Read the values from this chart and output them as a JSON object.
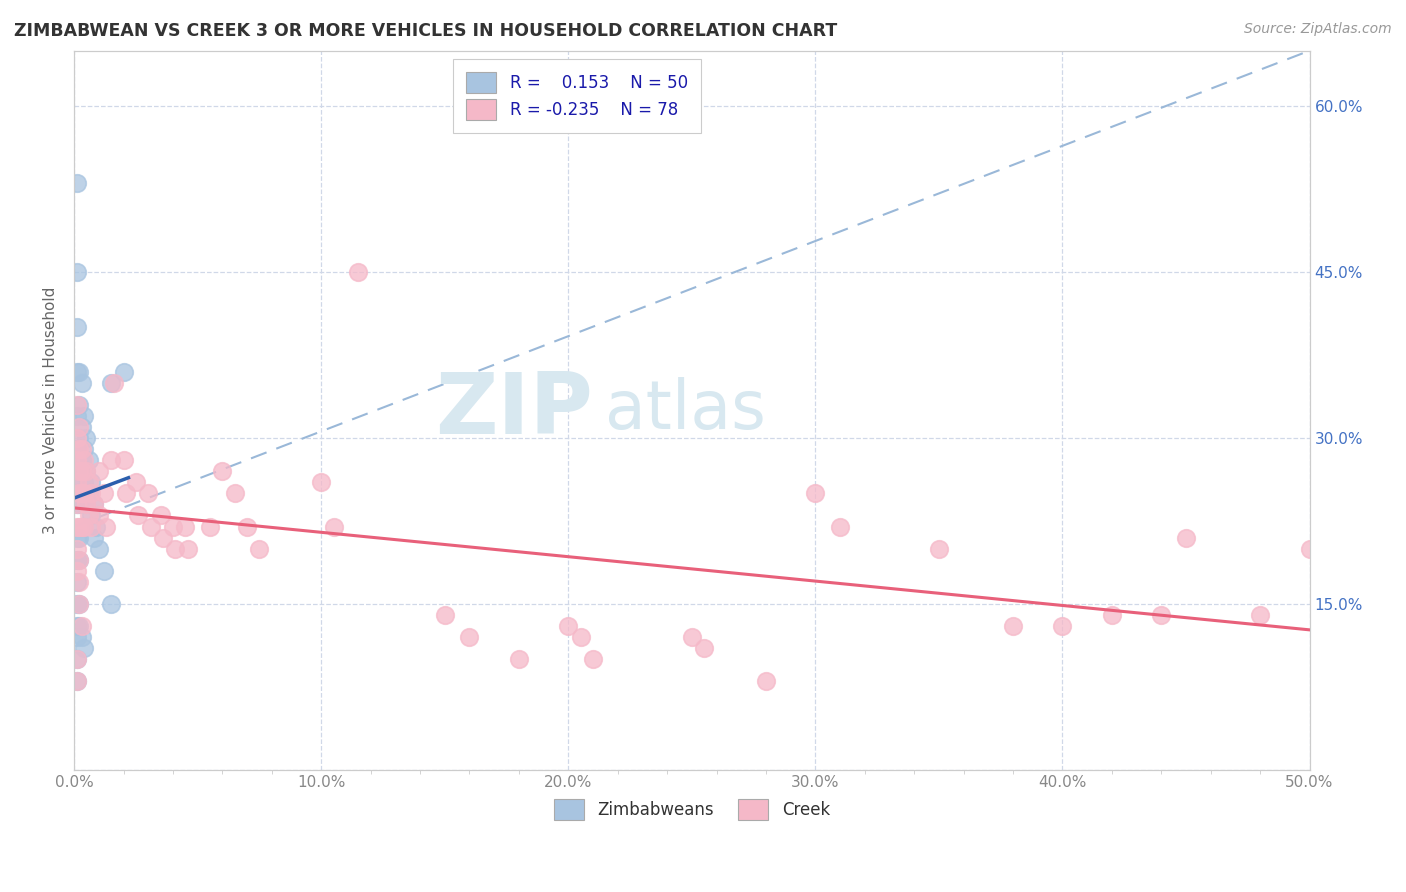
{
  "title": "ZIMBABWEAN VS CREEK 3 OR MORE VEHICLES IN HOUSEHOLD CORRELATION CHART",
  "source": "Source: ZipAtlas.com",
  "ylabel": "3 or more Vehicles in Household",
  "xlim": [
    0.0,
    0.5
  ],
  "ylim": [
    0.0,
    0.65
  ],
  "xticklabels": [
    "0.0%",
    "",
    "",
    "",
    "",
    "10.0%",
    "",
    "",
    "",
    "",
    "20.0%",
    "",
    "",
    "",
    "",
    "30.0%",
    "",
    "",
    "",
    "",
    "40.0%",
    "",
    "",
    "",
    "",
    "50.0%"
  ],
  "right_yticklabels": [
    "15.0%",
    "30.0%",
    "45.0%",
    "60.0%"
  ],
  "right_ytick_vals": [
    0.15,
    0.3,
    0.45,
    0.6
  ],
  "zimbabwean_color": "#a8c4e0",
  "creek_color": "#f5b8c8",
  "zimbabwean_line_color": "#2b5fad",
  "creek_line_color": "#e8607a",
  "dashed_line_color": "#9ab8d8",
  "background_color": "#ffffff",
  "watermark_color": "#d8e8f0",
  "zimbabwean_x": [
    0.001,
    0.001,
    0.001,
    0.001,
    0.001,
    0.001,
    0.001,
    0.001,
    0.001,
    0.001,
    0.002,
    0.002,
    0.002,
    0.002,
    0.002,
    0.002,
    0.002,
    0.003,
    0.003,
    0.003,
    0.003,
    0.004,
    0.004,
    0.004,
    0.005,
    0.005,
    0.005,
    0.006,
    0.006,
    0.007,
    0.007,
    0.008,
    0.008,
    0.009,
    0.01,
    0.012,
    0.015,
    0.001,
    0.001,
    0.001,
    0.001,
    0.002,
    0.002,
    0.003,
    0.004,
    0.015,
    0.02,
    0.001,
    0.001
  ],
  "zimbabwean_y": [
    0.53,
    0.45,
    0.4,
    0.36,
    0.32,
    0.29,
    0.26,
    0.24,
    0.21,
    0.19,
    0.36,
    0.33,
    0.3,
    0.27,
    0.24,
    0.21,
    0.19,
    0.35,
    0.31,
    0.28,
    0.25,
    0.32,
    0.29,
    0.26,
    0.3,
    0.27,
    0.24,
    0.28,
    0.25,
    0.26,
    0.23,
    0.24,
    0.21,
    0.22,
    0.2,
    0.18,
    0.15,
    0.17,
    0.15,
    0.13,
    0.12,
    0.15,
    0.13,
    0.12,
    0.11,
    0.35,
    0.36,
    0.1,
    0.08
  ],
  "creek_x": [
    0.001,
    0.001,
    0.001,
    0.001,
    0.001,
    0.001,
    0.001,
    0.001,
    0.002,
    0.002,
    0.002,
    0.002,
    0.002,
    0.002,
    0.003,
    0.003,
    0.003,
    0.003,
    0.004,
    0.004,
    0.004,
    0.005,
    0.005,
    0.006,
    0.006,
    0.007,
    0.007,
    0.008,
    0.01,
    0.01,
    0.012,
    0.013,
    0.015,
    0.016,
    0.02,
    0.021,
    0.025,
    0.026,
    0.03,
    0.031,
    0.035,
    0.036,
    0.04,
    0.041,
    0.045,
    0.046,
    0.055,
    0.06,
    0.065,
    0.07,
    0.075,
    0.1,
    0.105,
    0.115,
    0.15,
    0.16,
    0.18,
    0.2,
    0.205,
    0.21,
    0.25,
    0.255,
    0.28,
    0.3,
    0.31,
    0.35,
    0.38,
    0.4,
    0.42,
    0.44,
    0.45,
    0.48,
    0.5,
    0.001,
    0.001,
    0.002,
    0.002,
    0.003
  ],
  "creek_y": [
    0.33,
    0.3,
    0.28,
    0.26,
    0.24,
    0.22,
    0.2,
    0.18,
    0.31,
    0.29,
    0.27,
    0.25,
    0.22,
    0.19,
    0.29,
    0.27,
    0.25,
    0.22,
    0.28,
    0.25,
    0.22,
    0.27,
    0.24,
    0.26,
    0.23,
    0.25,
    0.22,
    0.24,
    0.27,
    0.23,
    0.25,
    0.22,
    0.28,
    0.35,
    0.28,
    0.25,
    0.26,
    0.23,
    0.25,
    0.22,
    0.23,
    0.21,
    0.22,
    0.2,
    0.22,
    0.2,
    0.22,
    0.27,
    0.25,
    0.22,
    0.2,
    0.26,
    0.22,
    0.45,
    0.14,
    0.12,
    0.1,
    0.13,
    0.12,
    0.1,
    0.12,
    0.11,
    0.08,
    0.25,
    0.22,
    0.2,
    0.13,
    0.13,
    0.14,
    0.14,
    0.21,
    0.14,
    0.2,
    0.1,
    0.08,
    0.17,
    0.15,
    0.13
  ]
}
